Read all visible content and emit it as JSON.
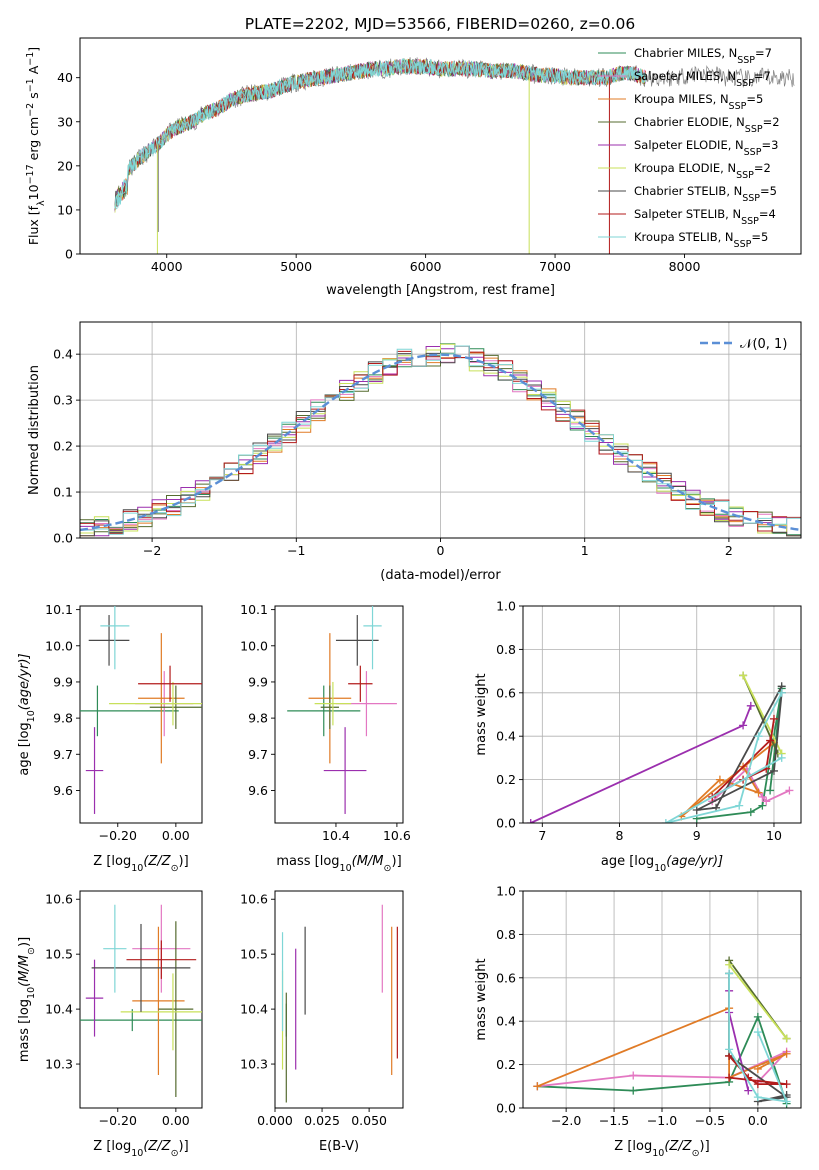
{
  "figure": {
    "title": "PLATE=2202, MJD=53566, FIBERID=0260, z=0.06"
  },
  "models": [
    {
      "name": "Chabrier MILES, N$_{SSP}$=7",
      "label_main": "Chabrier MILES, N",
      "sub": "SSP",
      "suffix": "=7",
      "color": "#2e8b57"
    },
    {
      "name": "Salpeter MILES, N$_{SSP}$=7",
      "label_main": "Salpeter MILES, N",
      "sub": "SSP",
      "suffix": "=7",
      "color": "#e377c2"
    },
    {
      "name": "Kroupa MILES, N$_{SSP}$=5",
      "label_main": "Kroupa MILES, N",
      "sub": "SSP",
      "suffix": "=5",
      "color": "#e07b26"
    },
    {
      "name": "Chabrier ELODIE, N$_{SSP}$=2",
      "label_main": "Chabrier ELODIE, N",
      "sub": "SSP",
      "suffix": "=2",
      "color": "#556b2f"
    },
    {
      "name": "Salpeter ELODIE, N$_{SSP}$=3",
      "label_main": "Salpeter ELODIE, N",
      "sub": "SSP",
      "suffix": "=3",
      "color": "#9b2fae"
    },
    {
      "name": "Kroupa ELODIE, N$_{SSP}$=2",
      "label_main": "Kroupa ELODIE, N",
      "sub": "SSP",
      "suffix": "=2",
      "color": "#c8e05a"
    },
    {
      "name": "Chabrier STELIB, N$_{SSP}$=5",
      "label_main": "Chabrier STELIB, N",
      "sub": "SSP",
      "suffix": "=5",
      "color": "#4a4a4a"
    },
    {
      "name": "Salpeter STELIB, N$_{SSP}$=4",
      "label_main": "Salpeter STELIB, N",
      "sub": "SSP",
      "suffix": "=4",
      "color": "#b31b1b"
    },
    {
      "name": "Kroupa STELIB, N$_{SSP}$=5",
      "label_main": "Kroupa STELIB, N",
      "sub": "SSP",
      "suffix": "=5",
      "color": "#7fd6d6"
    }
  ],
  "chart_data": [
    {
      "id": "spectrum",
      "type": "line",
      "xlabel": "wavelength [Angstrom, rest frame]",
      "ylabel": "Flux [f$_\\lambda$10$^{-17}$ erg cm$^{-2}$ s$^{-1}$ A$^{-1}$]",
      "ylabel_parts": [
        "Flux [f",
        "λ",
        "10",
        "−17",
        " erg cm",
        "−2",
        " s",
        "−1",
        " A",
        "−1",
        "]"
      ],
      "xlim": [
        3330,
        8900
      ],
      "ylim": [
        0,
        49
      ],
      "xticks": [
        4000,
        5000,
        6000,
        7000,
        8000
      ],
      "yticks": [
        0,
        10,
        20,
        30,
        40
      ],
      "data_color": "#808080",
      "model_color": "#7fd6d6",
      "continuum": {
        "x": [
          3600,
          3700,
          3800,
          3900,
          4000,
          4100,
          4200,
          4300,
          4400,
          4500,
          4600,
          4700,
          4800,
          4900,
          5000,
          5100,
          5200,
          5300,
          5400,
          5500,
          5600,
          5700,
          5800,
          5900,
          6000,
          6100,
          6200,
          6300,
          6400,
          6500,
          6600,
          6700,
          6800,
          6900,
          7000,
          7100,
          7200,
          7300,
          7400,
          7500,
          7600,
          7700,
          7800,
          7900,
          8000,
          8100,
          8200,
          8300,
          8400,
          8500,
          8600,
          8700,
          8800
        ],
        "y": [
          15,
          19,
          22,
          24,
          27,
          29,
          30,
          32,
          33,
          35,
          36,
          36.5,
          37,
          38,
          39,
          39.5,
          40,
          40.5,
          41,
          41.5,
          42,
          42,
          42.5,
          42.5,
          42.5,
          42,
          42,
          42,
          42,
          41.5,
          41.5,
          41.5,
          41,
          40.5,
          40.5,
          40,
          40,
          40,
          40,
          41,
          41,
          40,
          40,
          40,
          40.5,
          41,
          41,
          40,
          40,
          39.5,
          40,
          40,
          40
        ]
      },
      "noise_amplitude": 2.2,
      "data_xrange": [
        3600,
        8850
      ],
      "model_xrange": [
        3600,
        7700
      ],
      "spikes": [
        {
          "x": 3928,
          "y": 0,
          "color": "#c8e05a"
        },
        {
          "x": 3935,
          "y": 5,
          "color": "#808080"
        },
        {
          "x": 6800,
          "y": 0,
          "color": "#c8e05a"
        },
        {
          "x": 7420,
          "y": 0,
          "color": "#b31b1b"
        }
      ]
    },
    {
      "id": "residuals",
      "type": "bar",
      "xlabel": "(data-model)/error",
      "ylabel": "Normed distribution",
      "xlim": [
        -2.5,
        2.5
      ],
      "ylim": [
        0,
        0.47
      ],
      "xticks": [
        -2,
        -1,
        0,
        1,
        2
      ],
      "xtick_labels": [
        "−2",
        "−1",
        "0",
        "1",
        "2"
      ],
      "yticks": [
        0,
        0.1,
        0.2,
        0.3,
        0.4
      ],
      "ytick_labels": [
        "0.0",
        "0.1",
        "0.2",
        "0.3",
        "0.4"
      ],
      "bin_width": 0.1,
      "gaussian_label": "𝒩(0, 1)",
      "gaussian_color": "#5b8fd6",
      "grid": true,
      "legend": "top-right"
    },
    {
      "id": "age-vs-Z",
      "type": "scatter",
      "xlabel_main": "Z [log",
      "xlabel_sub": "10",
      "xlabel_rest": "(Z/Z",
      "xlabel_sub2": "⊙",
      "xlabel_end": ")]",
      "ylabel_main": "age  [log",
      "ylabel_sub": "10",
      "ylabel_rest": "(age/yr)]",
      "xlim": [
        -0.33,
        0.09
      ],
      "ylim": [
        9.51,
        10.11
      ],
      "xticks": [
        -0.2,
        0.0
      ],
      "xtick_labels": [
        "−0.20",
        "0.00"
      ],
      "yticks": [
        9.6,
        9.7,
        9.8,
        9.9,
        10.0,
        10.1
      ],
      "ytick_labels": [
        "9.6",
        "9.7",
        "9.8",
        "9.9",
        "10.0",
        "10.1"
      ],
      "points": [
        {
          "x": -0.27,
          "y": 9.82,
          "xerr": 0.28,
          "yerr": 0.07
        },
        {
          "x": -0.04,
          "y": 9.84,
          "xerr": 0.1,
          "yerr": 0.09
        },
        {
          "x": -0.05,
          "y": 9.855,
          "xerr": 0.08,
          "yerr": 0.18
        },
        {
          "x": 0.0,
          "y": 9.83,
          "xerr": 0.09,
          "yerr": 0.06
        },
        {
          "x": -0.28,
          "y": 9.655,
          "xerr": 0.03,
          "yerr": 0.12
        },
        {
          "x": -0.01,
          "y": 9.84,
          "xerr": 0.22,
          "yerr": 0.06
        },
        {
          "x": -0.23,
          "y": 10.015,
          "xerr": 0.07,
          "yerr": 0.07
        },
        {
          "x": -0.02,
          "y": 9.895,
          "xerr": 0.11,
          "yerr": 0.05
        },
        {
          "x": -0.21,
          "y": 10.055,
          "xerr": 0.05,
          "yerr": 0.12
        }
      ]
    },
    {
      "id": "age-vs-mass",
      "type": "scatter",
      "xlabel_main": "mass [log",
      "xlabel_sub": "10",
      "xlabel_rest": "(M/M",
      "xlabel_sub2": "⊙",
      "xlabel_end": ")]",
      "xlim": [
        10.2,
        10.62
      ],
      "ylim": [
        9.51,
        10.11
      ],
      "xticks": [
        10.4,
        10.6
      ],
      "xtick_labels": [
        "10.4",
        "10.6"
      ],
      "yticks": [
        9.6,
        9.7,
        9.8,
        9.9,
        10.0,
        10.1
      ],
      "ytick_labels": [
        "9.6",
        "9.7",
        "9.8",
        "9.9",
        "10.0",
        "10.1"
      ],
      "points": [
        {
          "x": 10.36,
          "y": 9.82,
          "xerr": 0.12,
          "yerr": 0.07
        },
        {
          "x": 10.5,
          "y": 9.84,
          "xerr": 0.1,
          "yerr": 0.09
        },
        {
          "x": 10.38,
          "y": 9.855,
          "xerr": 0.07,
          "yerr": 0.18
        },
        {
          "x": 10.38,
          "y": 9.83,
          "xerr": 0.03,
          "yerr": 0.06
        },
        {
          "x": 10.43,
          "y": 9.655,
          "xerr": 0.07,
          "yerr": 0.12
        },
        {
          "x": 10.39,
          "y": 9.84,
          "xerr": 0.06,
          "yerr": 0.06
        },
        {
          "x": 10.47,
          "y": 10.015,
          "xerr": 0.07,
          "yerr": 0.07
        },
        {
          "x": 10.48,
          "y": 9.895,
          "xerr": 0.04,
          "yerr": 0.05
        },
        {
          "x": 10.52,
          "y": 10.055,
          "xerr": 0.03,
          "yerr": 0.12
        }
      ]
    },
    {
      "id": "weight-vs-age",
      "type": "line",
      "xlabel_main": "age  [log",
      "xlabel_sub": "10",
      "xlabel_rest": "(age/yr)]",
      "ylabel": "mass weight",
      "xlim": [
        6.75,
        10.35
      ],
      "ylim": [
        0,
        1
      ],
      "xticks": [
        7,
        8,
        9,
        10
      ],
      "yticks": [
        0,
        0.2,
        0.4,
        0.6,
        0.8,
        1.0
      ],
      "ytick_labels": [
        "0.0",
        "0.2",
        "0.4",
        "0.6",
        "0.8",
        "1.0"
      ],
      "grid": true,
      "series": [
        {
          "x": [
            9.95,
            10.1,
            9.85,
            9.7,
            9.0
          ],
          "y": [
            0.15,
            0.62,
            0.08,
            0.05,
            0.02
          ]
        },
        {
          "x": [
            10.2,
            9.9,
            9.85,
            9.65,
            9.2
          ],
          "y": [
            0.15,
            0.1,
            0.12,
            0.25,
            0.1
          ]
        },
        {
          "x": [
            9.6,
            9.8,
            9.3,
            8.8,
            10.0
          ],
          "y": [
            0.26,
            0.14,
            0.2,
            0.03,
            0.37
          ]
        },
        {
          "x": [
            9.6,
            10.05
          ],
          "y": [
            0.68,
            0.32
          ]
        },
        {
          "x": [
            6.85,
            9.6,
            9.7
          ],
          "y": [
            0.0,
            0.45,
            0.54
          ]
        },
        {
          "x": [
            9.6,
            10.1
          ],
          "y": [
            0.68,
            0.32
          ]
        },
        {
          "x": [
            10.1,
            9.25,
            9.0,
            10.0,
            10.1
          ],
          "y": [
            0.63,
            0.07,
            0.06,
            0.24,
            0.6
          ]
        },
        {
          "x": [
            10.0,
            9.9,
            9.6,
            9.2,
            9.95
          ],
          "y": [
            0.48,
            0.25,
            0.2,
            0.12,
            0.38
          ]
        },
        {
          "x": [
            10.1,
            9.8,
            9.55,
            8.6,
            10.1
          ],
          "y": [
            0.6,
            0.4,
            0.08,
            0.0,
            0.3
          ]
        }
      ]
    },
    {
      "id": "mass-vs-Z",
      "type": "scatter",
      "xlabel_main": "Z [log",
      "xlabel_sub": "10",
      "xlabel_rest": "(Z/Z",
      "xlabel_sub2": "⊙",
      "xlabel_end": ")]",
      "ylabel_main": "mass [log",
      "ylabel_sub": "10",
      "ylabel_rest": "(M/M",
      "ylabel_sub2": "⊙",
      "ylabel_end": ")]",
      "xlim": [
        -0.33,
        0.09
      ],
      "ylim": [
        10.22,
        10.615
      ],
      "xticks": [
        -0.2,
        0.0
      ],
      "xtick_labels": [
        "−0.20",
        "0.00"
      ],
      "yticks": [
        10.3,
        10.4,
        10.5,
        10.6
      ],
      "ytick_labels": [
        "10.3",
        "10.4",
        "10.5",
        "10.6"
      ],
      "points": [
        {
          "x": -0.15,
          "y": 10.38,
          "xerr": 0.27,
          "yerr": 0.02
        },
        {
          "x": -0.05,
          "y": 10.51,
          "xerr": 0.1,
          "yerr": 0.08
        },
        {
          "x": -0.06,
          "y": 10.415,
          "xerr": 0.09,
          "yerr": 0.135
        },
        {
          "x": 0.0,
          "y": 10.4,
          "xerr": 0.06,
          "yerr": 0.16
        },
        {
          "x": -0.28,
          "y": 10.42,
          "xerr": 0.03,
          "yerr": 0.07
        },
        {
          "x": -0.01,
          "y": 10.395,
          "xerr": 0.18,
          "yerr": 0.07
        },
        {
          "x": -0.12,
          "y": 10.475,
          "xerr": 0.17,
          "yerr": 0.08
        },
        {
          "x": -0.05,
          "y": 10.49,
          "xerr": 0.12,
          "yerr": 0.035
        },
        {
          "x": -0.21,
          "y": 10.51,
          "xerr": 0.04,
          "yerr": 0.08
        }
      ]
    },
    {
      "id": "mass-vs-EBV",
      "type": "scatter",
      "xlabel": "E(B-V)",
      "xlim": [
        0.0,
        0.068
      ],
      "ylim": [
        10.22,
        10.615
      ],
      "xticks": [
        0.0,
        0.025,
        0.05
      ],
      "xtick_labels": [
        "0.000",
        "0.025",
        "0.050"
      ],
      "yticks": [
        10.3,
        10.4,
        10.5,
        10.6
      ],
      "ytick_labels": [
        "10.3",
        "10.4",
        "10.5",
        "10.6"
      ],
      "points": [
        {
          "x": 0.006,
          "y": 10.38,
          "yerr": 0.03
        },
        {
          "x": 0.057,
          "y": 10.51,
          "yerr": 0.08
        },
        {
          "x": 0.062,
          "y": 10.415,
          "yerr": 0.135
        },
        {
          "x": 0.006,
          "y": 10.33,
          "yerr": 0.1
        },
        {
          "x": 0.011,
          "y": 10.4,
          "yerr": 0.11
        },
        {
          "x": 0.004,
          "y": 10.38,
          "yerr": 0.09
        },
        {
          "x": 0.016,
          "y": 10.47,
          "yerr": 0.08
        },
        {
          "x": 0.065,
          "y": 10.43,
          "yerr": 0.12
        },
        {
          "x": 0.004,
          "y": 10.45,
          "yerr": 0.09
        }
      ]
    },
    {
      "id": "weight-vs-Z",
      "type": "line",
      "xlabel_main": "Z [log",
      "xlabel_sub": "10",
      "xlabel_rest": "(Z/Z",
      "xlabel_sub2": "⊙",
      "xlabel_end": ")]",
      "ylabel": "mass weight",
      "xlim": [
        -2.45,
        0.45
      ],
      "ylim": [
        0,
        1
      ],
      "xticks": [
        -2.0,
        -1.5,
        -1.0,
        -0.5,
        0.0
      ],
      "xtick_labels": [
        "−2.0",
        "−1.5",
        "−1.0",
        "−0.5",
        "0.0"
      ],
      "yticks": [
        0,
        0.2,
        0.4,
        0.6,
        0.8,
        1.0
      ],
      "ytick_labels": [
        "0.0",
        "0.2",
        "0.4",
        "0.6",
        "0.8",
        "1.0"
      ],
      "grid": true,
      "series": [
        {
          "x": [
            -2.3,
            -1.3,
            -0.3,
            0.0,
            0.3
          ],
          "y": [
            0.1,
            0.08,
            0.12,
            0.42,
            0.02
          ]
        },
        {
          "x": [
            -2.3,
            -1.3,
            -0.3,
            0.3,
            0.0
          ],
          "y": [
            0.1,
            0.15,
            0.14,
            0.26,
            0.12
          ]
        },
        {
          "x": [
            -2.3,
            -0.3,
            -0.3,
            0.3,
            0.0
          ],
          "y": [
            0.1,
            0.46,
            0.14,
            0.25,
            0.18
          ]
        },
        {
          "x": [
            -0.3,
            0.3
          ],
          "y": [
            0.68,
            0.32
          ]
        },
        {
          "x": [
            -0.3,
            -0.3,
            -0.1
          ],
          "y": [
            0.54,
            0.44,
            0.08
          ]
        },
        {
          "x": [
            -0.3,
            0.3
          ],
          "y": [
            0.66,
            0.32
          ]
        },
        {
          "x": [
            -0.3,
            -0.3,
            0.3,
            0.0,
            0.3
          ],
          "y": [
            0.62,
            0.24,
            0.05,
            0.03,
            0.06
          ]
        },
        {
          "x": [
            -0.3,
            -0.1,
            0.0,
            0.3,
            -0.3
          ],
          "y": [
            0.24,
            0.14,
            0.11,
            0.11,
            0.14
          ]
        },
        {
          "x": [
            -0.3,
            -0.3,
            0.0,
            0.3,
            0.0
          ],
          "y": [
            0.62,
            0.27,
            0.05,
            0.03,
            0.35
          ]
        }
      ]
    }
  ]
}
